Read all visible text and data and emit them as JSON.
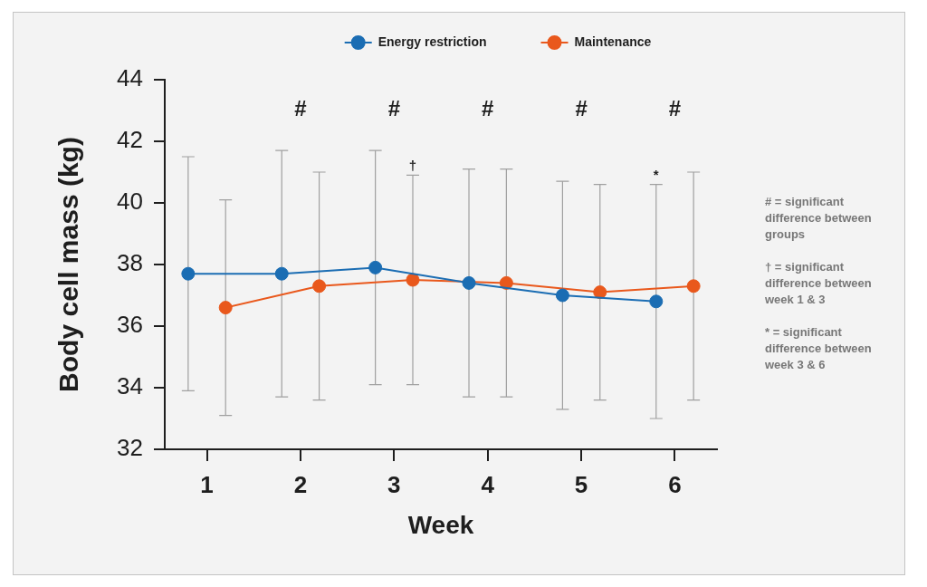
{
  "chart_data": {
    "type": "line",
    "xlabel": "Week",
    "ylabel": "Body cell mass (kg)",
    "xlim": [
      0.55,
      6.45
    ],
    "xticks": [
      1,
      2,
      3,
      4,
      5,
      6
    ],
    "ylim": [
      32,
      44
    ],
    "yticks": [
      32,
      34,
      36,
      38,
      40,
      42,
      44
    ],
    "grid": false,
    "legend": "top",
    "marker": "circle",
    "series": [
      {
        "name": "Energy restriction",
        "color": "#1b6db3",
        "x": [
          0.8,
          1.8,
          2.8,
          3.8,
          4.8,
          5.8
        ],
        "values": [
          37.7,
          37.7,
          37.9,
          37.4,
          37.0,
          36.8
        ],
        "errors": [
          3.8,
          4.0,
          3.8,
          3.7,
          3.7,
          3.8
        ]
      },
      {
        "name": "Maintenance",
        "color": "#e9581c",
        "x": [
          1.2,
          2.2,
          3.2,
          4.2,
          5.2,
          6.2
        ],
        "values": [
          36.6,
          37.3,
          37.5,
          37.4,
          37.1,
          37.3
        ],
        "errors": [
          3.5,
          3.7,
          3.4,
          3.7,
          3.5,
          3.7
        ]
      }
    ],
    "annotations": [
      "#",
      "#",
      "#",
      "#",
      "#",
      {
        "text": "†",
        "x": 3.2,
        "y": 40.9
      },
      {
        "text": "*",
        "x": 5.8,
        "y": 40.6
      },
      "# = significant difference between groups",
      "† = significant difference between week 1 & 3",
      "* = significant difference between week 3 & 6"
    ]
  }
}
